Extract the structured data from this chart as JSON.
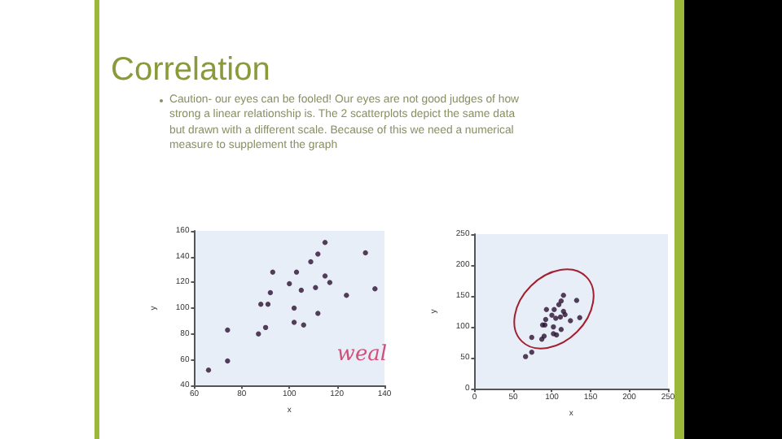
{
  "chart_data": [
    {
      "type": "scatter",
      "title": "Correlation",
      "subtitle": "Caution- our eyes can be fooled!  Our eyes are not good judges of how strong a linear relationship is.  The 2 scatterplots depict the same data but drawn with a different scale.  Because of this we need a numerical measure to supplement the graph",
      "xlabel": "x",
      "ylabel": "y",
      "annotations": [
        "weal"
      ],
      "marker": "circle",
      "color": "#2a1030",
      "x": [
        66,
        74,
        74,
        87,
        88,
        90,
        91,
        92,
        93,
        100,
        102,
        102,
        103,
        105,
        106,
        109,
        111,
        112,
        112,
        115,
        115,
        117,
        124,
        132,
        136
      ],
      "values": [
        52,
        59,
        83,
        80,
        103,
        85,
        103,
        112,
        128,
        119,
        100,
        89,
        128,
        114,
        87,
        136,
        116,
        96,
        142,
        125,
        151,
        120,
        110,
        143,
        115
      ],
      "xlim": [
        60,
        140
      ],
      "xticks": [
        60,
        80,
        100,
        120,
        140
      ],
      "ylim": [
        40,
        160
      ],
      "yticks": [
        40,
        60,
        80,
        100,
        120,
        140,
        160
      ]
    },
    {
      "type": "scatter",
      "xlabel": "x",
      "ylabel": "y",
      "marker": "circle",
      "color": "#2a1030",
      "x": [
        66,
        74,
        74,
        87,
        88,
        90,
        91,
        92,
        93,
        100,
        102,
        102,
        103,
        105,
        106,
        109,
        111,
        112,
        112,
        115,
        115,
        117,
        124,
        132,
        136
      ],
      "values": [
        52,
        59,
        83,
        80,
        103,
        85,
        103,
        112,
        128,
        119,
        100,
        89,
        128,
        114,
        87,
        136,
        116,
        96,
        142,
        125,
        151,
        120,
        110,
        143,
        115
      ],
      "xlim": [
        0,
        250
      ],
      "xticks": [
        0,
        50,
        100,
        150,
        200,
        250
      ],
      "ylim": [
        0,
        250
      ],
      "yticks": [
        0,
        50,
        100,
        150,
        200,
        250
      ]
    }
  ]
}
